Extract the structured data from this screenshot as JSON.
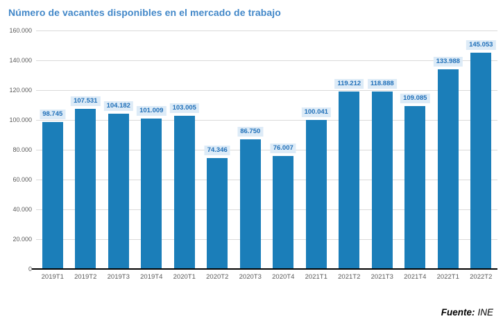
{
  "title": "Número de vacantes disponibles en el mercado de trabajo",
  "source": {
    "label": "Fuente:",
    "value": "INE"
  },
  "colors": {
    "title": "#4187C8",
    "bar": "#1B7EB9",
    "value_label_text": "#1F6FB8",
    "value_label_background": "#DDEBF7",
    "gridline": "#D9D9D9",
    "axis_text": "#595959",
    "axis_line": "#000000",
    "background": "#FFFFFF"
  },
  "chart_data": {
    "type": "bar",
    "title": "Número de vacantes disponibles en el mercado de trabajo",
    "categories": [
      "2019T1",
      "2019T2",
      "2019T3",
      "2019T4",
      "2020T1",
      "2020T2",
      "2020T3",
      "2020T4",
      "2021T1",
      "2021T2",
      "2021T3",
      "2021T4",
      "2022T1",
      "2022T2"
    ],
    "values": [
      98745,
      107531,
      104182,
      101009,
      103005,
      74346,
      86750,
      76007,
      100041,
      119212,
      118888,
      109085,
      133988,
      145053
    ],
    "value_labels": [
      "98.745",
      "107.531",
      "104.182",
      "101.009",
      "103.005",
      "74.346",
      "86.750",
      "76.007",
      "100.041",
      "119.212",
      "118.888",
      "109.085",
      "133.988",
      "145.053"
    ],
    "xlabel": "",
    "ylabel": "",
    "ylim": [
      0,
      160000
    ],
    "yticks": [
      {
        "value": 0,
        "label": "0"
      },
      {
        "value": 20000,
        "label": "20.000"
      },
      {
        "value": 40000,
        "label": "40.000"
      },
      {
        "value": 60000,
        "label": "60.000"
      },
      {
        "value": 80000,
        "label": "80.000"
      },
      {
        "value": 100000,
        "label": "100.000"
      },
      {
        "value": 120000,
        "label": "120.000"
      },
      {
        "value": 140000,
        "label": "140.000"
      },
      {
        "value": 160000,
        "label": "160.000"
      }
    ],
    "grid": true,
    "legend_position": "none"
  }
}
